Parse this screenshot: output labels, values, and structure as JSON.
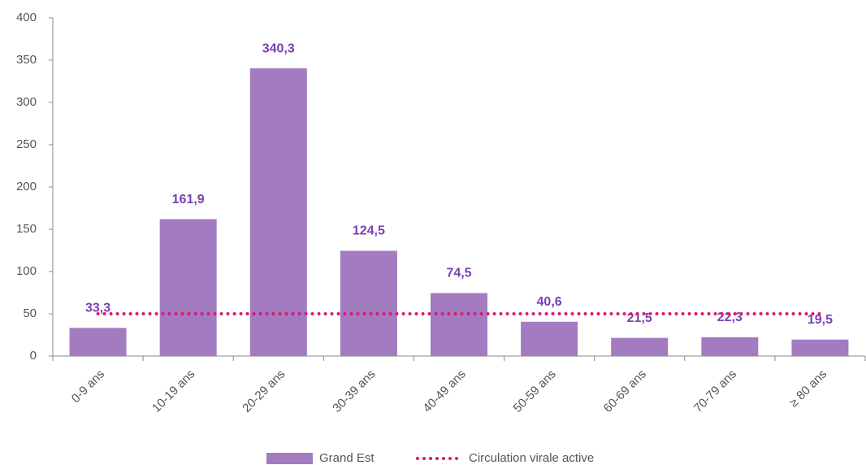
{
  "chart_data": {
    "type": "bar",
    "categories": [
      "0-9 ans",
      "10-19 ans",
      "20-29 ans",
      "30-39 ans",
      "40-49 ans",
      "50-59 ans",
      "60-69 ans",
      "70-79 ans",
      "≥ 80 ans"
    ],
    "series": [
      {
        "name": "Grand Est",
        "type": "bar",
        "color": "#a27bc0",
        "values": [
          33.3,
          161.9,
          340.3,
          124.5,
          74.5,
          40.6,
          21.5,
          22.3,
          19.5
        ],
        "value_labels": [
          "33,3",
          "161,9",
          "340,3",
          "124,5",
          "74,5",
          "40,6",
          "21,5",
          "22,3",
          "19,5"
        ],
        "label_color": "#7a3fb4"
      },
      {
        "name": "Circulation virale active",
        "type": "line",
        "color": "#e0176a",
        "values": [
          50,
          50,
          50,
          50,
          50,
          50,
          50,
          50,
          50
        ]
      }
    ],
    "ylim": [
      0,
      400
    ],
    "yticks": [
      0,
      50,
      100,
      150,
      200,
      250,
      300,
      350,
      400
    ],
    "grid": false,
    "legend": "bottom"
  }
}
